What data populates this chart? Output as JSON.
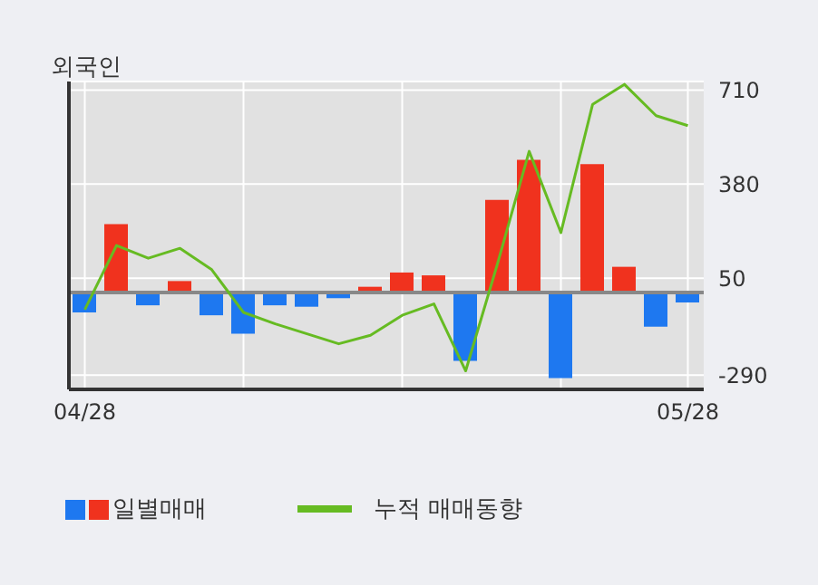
{
  "chart_data": {
    "type": "bar",
    "title": "외국인",
    "categories": [
      "04/28",
      null,
      null,
      null,
      null,
      null,
      null,
      null,
      null,
      null,
      null,
      null,
      null,
      null,
      null,
      null,
      null,
      null,
      null,
      "05/28"
    ],
    "series": [
      {
        "name": "일별매매",
        "colors": [
          "#1e78f0",
          "#f0321e",
          "#1e78f0",
          "#f0321e",
          "#1e78f0",
          "#1e78f0",
          "#1e78f0",
          "#1e78f0",
          "#1e78f0",
          "#f0321e",
          "#f0321e",
          "#f0321e",
          "#1e78f0",
          "#f0321e",
          "#f0321e",
          "#1e78f0",
          "#f0321e",
          "#f0321e",
          "#1e78f0",
          "#1e78f0"
        ],
        "values": [
          -70,
          240,
          -45,
          40,
          -80,
          -145,
          -45,
          -50,
          -20,
          20,
          70,
          60,
          -240,
          325,
          465,
          -300,
          450,
          90,
          -120,
          -35
        ]
      },
      {
        "name": "누적 매매동향",
        "type": "line",
        "color": "#66bb22",
        "values": [
          -60,
          165,
          120,
          155,
          80,
          -70,
          -110,
          -145,
          -180,
          -150,
          -80,
          -40,
          -275,
          100,
          495,
          210,
          660,
          730,
          620,
          585
        ]
      }
    ],
    "ylim": [
      -340,
      740
    ],
    "yticks": [
      -290,
      50,
      380,
      710
    ],
    "ref_lines": [
      {
        "axis": "y",
        "value": 0,
        "color": "#888888"
      }
    ],
    "grid": true,
    "legend": "bottom",
    "marker": "none",
    "line_style": "solid"
  }
}
